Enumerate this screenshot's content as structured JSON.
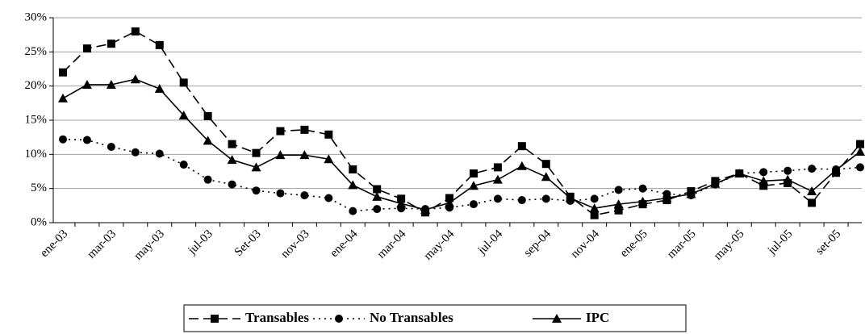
{
  "chart_data": {
    "type": "line",
    "categories": [
      "ene-03",
      null,
      "mar-03",
      null,
      "may-03",
      null,
      "jul-03",
      null,
      "Set-03",
      null,
      "nov-03",
      null,
      "ene-04",
      null,
      "mar-04",
      null,
      "may-04",
      null,
      "jul-04",
      null,
      "sep-04",
      null,
      "nov-04",
      null,
      "ene-05",
      null,
      "mar-05",
      null,
      "may-05",
      null,
      "jul-05",
      null,
      "set-05",
      null
    ],
    "series": [
      {
        "name": "Transables",
        "color": "#000000",
        "dash": "dashed",
        "marker": "square",
        "values": [
          22,
          25.5,
          26.2,
          28,
          26,
          20.5,
          15.6,
          11.5,
          10.2,
          13.4,
          13.6,
          12.9,
          7.8,
          4.9,
          3.5,
          1.5,
          3.6,
          7.2,
          8.1,
          11.2,
          8.6,
          3.8,
          1.1,
          1.8,
          2.7,
          3.3,
          4.6,
          6.1,
          7.2,
          5.4,
          5.8,
          2.9,
          7.3,
          11.5
        ]
      },
      {
        "name": "No Transables",
        "color": "#000000",
        "dash": "dotted",
        "marker": "circle",
        "values": [
          12.2,
          12.1,
          11.1,
          10.3,
          10.1,
          8.5,
          6.3,
          5.6,
          4.7,
          4.3,
          4.0,
          3.6,
          1.7,
          2.0,
          2.1,
          2.0,
          2.2,
          2.7,
          3.5,
          3.3,
          3.5,
          3.2,
          3.5,
          4.8,
          5.0,
          4.2,
          4.0,
          5.6,
          7.2,
          7.4,
          7.6,
          7.9,
          7.8,
          8.1
        ]
      },
      {
        "name": "IPC",
        "color": "#000000",
        "dash": "solid",
        "marker": "triangle",
        "values": [
          18.2,
          20.2,
          20.2,
          21,
          19.6,
          15.7,
          12,
          9.2,
          8.1,
          9.9,
          9.9,
          9.3,
          5.5,
          3.8,
          2.8,
          1.9,
          2.9,
          5.4,
          6.3,
          8.3,
          6.7,
          3.6,
          2.1,
          2.7,
          3.1,
          3.6,
          4.2,
          5.7,
          7.2,
          6.1,
          6.3,
          4.6,
          7.7,
          10.4
        ]
      }
    ],
    "ylim": [
      0,
      30
    ],
    "yticks": [
      {
        "value": 0,
        "label": "0%"
      },
      {
        "value": 5,
        "label": "5%"
      },
      {
        "value": 10,
        "label": "10%"
      },
      {
        "value": 15,
        "label": "15%"
      },
      {
        "value": 20,
        "label": "20%"
      },
      {
        "value": 25,
        "label": "25%"
      },
      {
        "value": 30,
        "label": "30%"
      }
    ],
    "grid": true,
    "legend": "bottom"
  }
}
